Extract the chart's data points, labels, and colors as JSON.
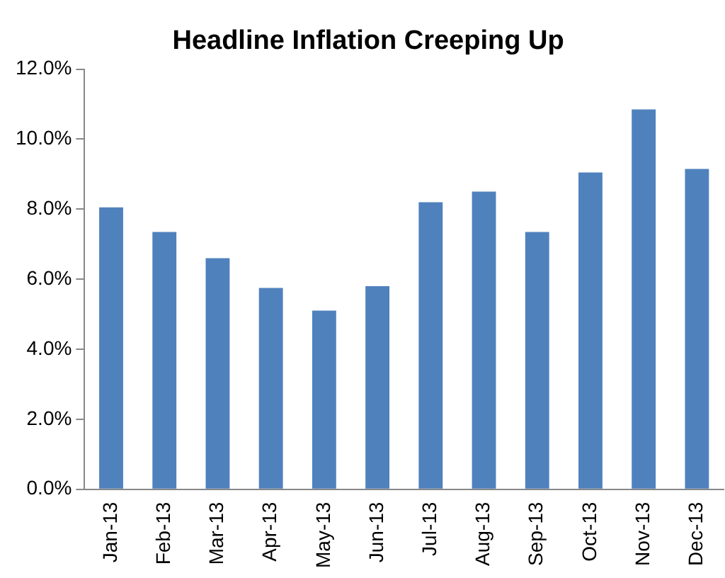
{
  "chart_data": {
    "type": "bar",
    "title": "Headline Inflation Creeping Up",
    "categories": [
      "Jan-13",
      "Feb-13",
      "Mar-13",
      "Apr-13",
      "May-13",
      "Jun-13",
      "Jul-13",
      "Aug-13",
      "Sep-13",
      "Oct-13",
      "Nov-13",
      "Dec-13"
    ],
    "values": [
      8.05,
      7.35,
      6.6,
      5.75,
      5.1,
      5.8,
      8.2,
      8.5,
      7.35,
      9.05,
      10.85,
      9.15
    ],
    "color": "#4f81bd",
    "ylim": [
      0,
      12
    ],
    "yticks": [
      {
        "value": 0,
        "label": "0.0%"
      },
      {
        "value": 2,
        "label": "2.0%"
      },
      {
        "value": 4,
        "label": "4.0%"
      },
      {
        "value": 6,
        "label": "6.0%"
      },
      {
        "value": 8,
        "label": "8.0%"
      },
      {
        "value": 10,
        "label": "10.0%"
      },
      {
        "value": 12,
        "label": "12.0%"
      }
    ],
    "grid": false,
    "legend": false
  }
}
